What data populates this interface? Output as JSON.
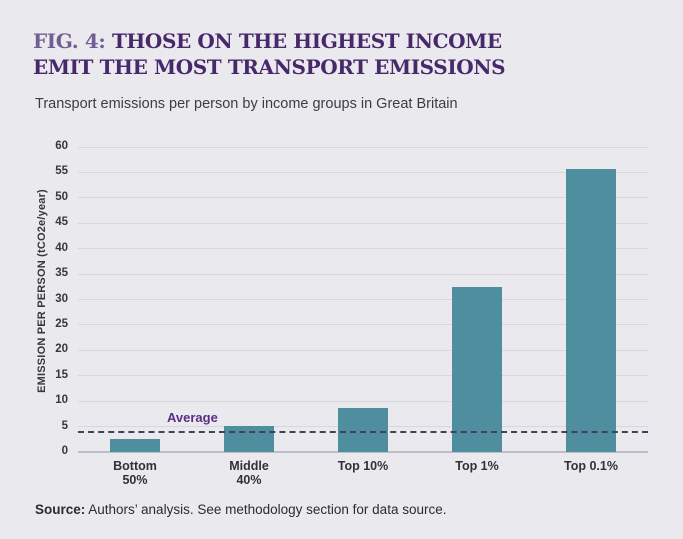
{
  "figure": {
    "label": "FIG. 4:",
    "title_line1": "THOSE ON THE HIGHEST INCOME",
    "title_line2": "EMIT THE MOST TRANSPORT EMISSIONS",
    "subtitle": "Transport emissions per person by income groups in Great Britain"
  },
  "chart_data": {
    "type": "bar",
    "title": "Transport emissions per person by income groups in Great Britain",
    "categories": [
      "Bottom\n50%",
      "Middle\n40%",
      "Top 10%",
      "Top 1%",
      "Top 0.1%"
    ],
    "values": [
      2.5,
      5.1,
      8.6,
      32.4,
      55.7
    ],
    "xlabel": "",
    "ylabel": "EMISSION PER PERSON (tCO2e/year)",
    "ylim": [
      0,
      60
    ],
    "ytick_step": 5,
    "grid": true,
    "legend": false,
    "bar_color": "#4e8e9e",
    "average_line": {
      "label": "Average",
      "value": 4,
      "style": "dashed"
    }
  },
  "footer": {
    "source_label": "Source:",
    "source_text": " Authors’ analysis. See methodology section for data source."
  },
  "colors": {
    "background": "#eae9ed",
    "title_main": "#47286b",
    "title_fig_label": "#6f5f95",
    "bar": "#4e8e9e",
    "average_label": "#5b2e84",
    "dashed_line": "#3f425b",
    "gridline": "#d9d7dd",
    "axis_text": "#38373c"
  }
}
